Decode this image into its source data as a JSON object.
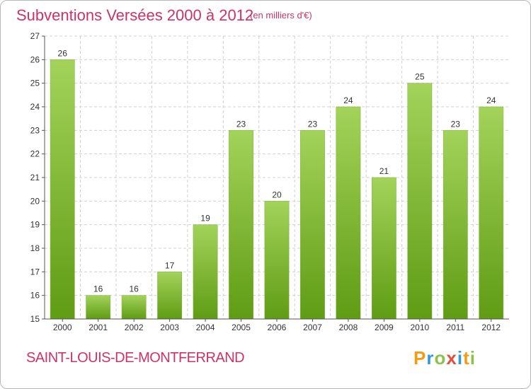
{
  "header": {
    "title": "Subventions Versées 2000 à 2012",
    "unit": "(en milliers d'€)"
  },
  "footer": {
    "commune": "SAINT-LOUIS-DE-MONTFERRAND",
    "logo_text": "Proxiti",
    "logo_letters": [
      {
        "char": "P",
        "color": "#f39c12"
      },
      {
        "char": "r",
        "color": "#3498db"
      },
      {
        "char": "o",
        "color": "#8bc34a"
      },
      {
        "char": "x",
        "color": "#e74c3c"
      },
      {
        "char": "i",
        "color": "#3498db"
      },
      {
        "char": "t",
        "color": "#f39c12"
      },
      {
        "char": "i",
        "color": "#8bc34a"
      }
    ]
  },
  "colors": {
    "title": "#cc3366",
    "bar_top": "#a3d35a",
    "bar_bottom": "#5f9c14",
    "grid": "#d0d0d0",
    "axis": "#555555"
  },
  "chart_data": {
    "type": "bar",
    "categories": [
      "2000",
      "2001",
      "2002",
      "2003",
      "2004",
      "2005",
      "2006",
      "2007",
      "2008",
      "2009",
      "2010",
      "2011",
      "2012"
    ],
    "values": [
      26,
      16,
      16,
      17,
      19,
      23,
      20,
      23,
      24,
      21,
      25,
      23,
      24
    ],
    "ylim": [
      15,
      27
    ],
    "yticks": [
      15,
      16,
      17,
      18,
      19,
      20,
      21,
      22,
      23,
      24,
      25,
      26,
      27
    ],
    "grid": true,
    "legend": "none",
    "xlabel": "",
    "ylabel": ""
  }
}
